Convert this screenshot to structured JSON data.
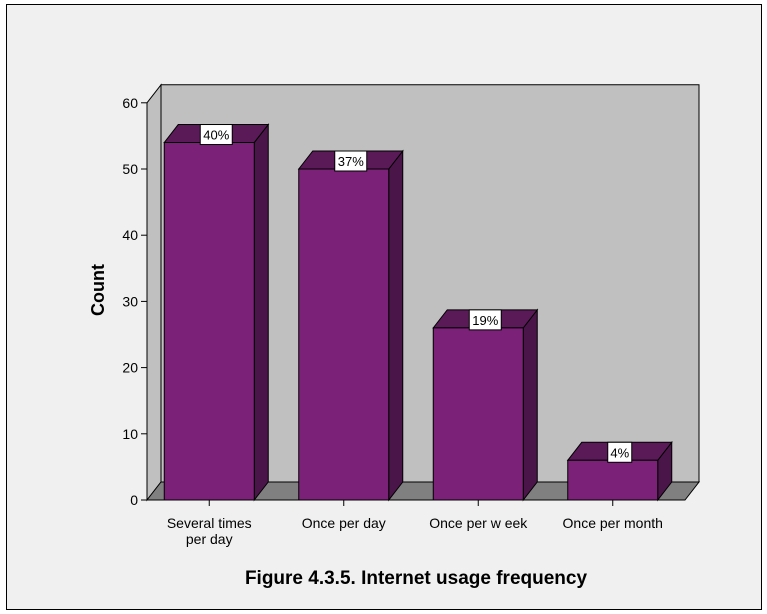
{
  "chart_data": {
    "type": "bar",
    "categories": [
      [
        "Several times",
        "per day"
      ],
      [
        "Once per day"
      ],
      [
        "Once per w eek"
      ],
      [
        "Once per month"
      ]
    ],
    "values": [
      54,
      50,
      26,
      6
    ],
    "data_labels": [
      "40%",
      "37%",
      "19%",
      "4%"
    ],
    "ylabel": "Count",
    "xlabel": "",
    "ylim": [
      0,
      60
    ],
    "yticks": [
      0,
      10,
      20,
      30,
      40,
      50,
      60
    ],
    "bar_color": "#7b2278",
    "bar_side_color": "#4a1548",
    "bar_top_color": "#5a1a58",
    "wall_color": "#c0c0c0",
    "floor_color": "#808080",
    "legend": "none",
    "grid": false
  },
  "caption": "Figure 4.3.5. Internet usage frequency"
}
